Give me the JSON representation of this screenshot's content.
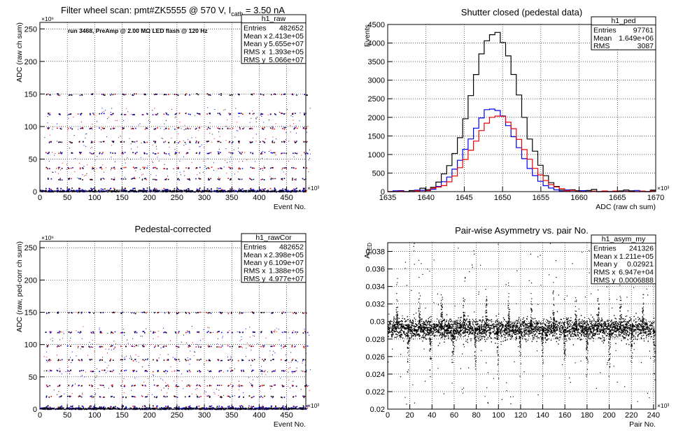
{
  "chart_data": [
    {
      "type": "scatter",
      "title": "Filter wheel scan: pmt#ZK5555 @   570 V, I",
      "title_sub": "cath",
      "title_tail": " = 3.50 nA",
      "subtitle": "run 3468, PreAmp @ 2.00 MΩ LED flash @  120 Hz",
      "xlabel": "Event No.",
      "ylabel": "ADC (raw ch sum)",
      "x_exponent": "×10³",
      "y_exponent": "×10⁶",
      "xlim": [
        0,
        485
      ],
      "ylim": [
        0,
        260
      ],
      "xticks": [
        0,
        50,
        100,
        150,
        200,
        250,
        300,
        350,
        400,
        450
      ],
      "yticks": [
        0,
        50,
        100,
        150,
        200,
        250
      ],
      "grid": true,
      "levels": [
        1.6,
        5,
        20,
        37,
        60,
        77,
        98,
        120,
        150
      ],
      "colors": {
        "red": "#ee0000",
        "blue": "#0000ee",
        "black": "#000000"
      },
      "stats": {
        "name": "h1_raw",
        "rows": [
          [
            "Entries",
            "482652"
          ],
          [
            "Mean x",
            "2.413e+05"
          ],
          [
            "Mean y",
            "5.655e+07"
          ],
          [
            "RMS x",
            "1.393e+05"
          ],
          [
            "RMS y",
            "5.066e+07"
          ]
        ]
      }
    },
    {
      "type": "line",
      "title": "Shutter closed (pedestal data)",
      "xlabel": "ADC (raw ch sum)",
      "ylabel": "Events",
      "x_exponent": "×10³",
      "xlim": [
        1635,
        1670
      ],
      "ylim": [
        0,
        4500
      ],
      "xticks": [
        1635,
        1640,
        1645,
        1650,
        1655,
        1660,
        1665,
        1670
      ],
      "yticks": [
        0,
        500,
        1000,
        1500,
        2000,
        2500,
        3000,
        3500,
        4000,
        4500
      ],
      "grid": true,
      "series": [
        {
          "color": "#000000",
          "mean": 1649,
          "sigma": 3.1,
          "amp": 4300
        },
        {
          "color": "#0000ee",
          "mean": 1648.7,
          "sigma": 3.0,
          "amp": 2250
        },
        {
          "color": "#ee0000",
          "mean": 1649.4,
          "sigma": 3.2,
          "amp": 2050
        }
      ],
      "stats": {
        "name": "h1_ped",
        "rows": [
          [
            "Entries",
            "97761"
          ],
          [
            "Mean",
            "1.649e+06"
          ],
          [
            "RMS",
            "3087"
          ]
        ]
      }
    },
    {
      "type": "scatter",
      "title": "Pedestal-corrected",
      "xlabel": "Event No.",
      "ylabel": "ADC (raw, ped-corr ch sum)",
      "x_exponent": "×10³",
      "y_exponent": "×10⁶",
      "xlim": [
        0,
        485
      ],
      "ylim": [
        0,
        260
      ],
      "xticks": [
        0,
        50,
        100,
        150,
        200,
        250,
        300,
        350,
        400,
        450
      ],
      "yticks": [
        0,
        50,
        100,
        150,
        200,
        250
      ],
      "grid": true,
      "levels": [
        1.6,
        5,
        20,
        37,
        60,
        77,
        98,
        120,
        150
      ],
      "stats": {
        "name": "h1_rawCor",
        "rows": [
          [
            "Entries",
            "482652"
          ],
          [
            "Mean x",
            "2.398e+05"
          ],
          [
            "Mean y",
            "6.109e+07"
          ],
          [
            "RMS x",
            "1.388e+05"
          ],
          [
            "RMS y",
            "4.977e+07"
          ]
        ]
      }
    },
    {
      "type": "scatter",
      "title": "Pair-wise Asymmetry vs. pair No.",
      "xlabel": "Pair No.",
      "ylabel": "A",
      "ylabel_sub": "LED",
      "x_exponent": "×10³",
      "xlim": [
        0,
        242
      ],
      "ylim": [
        0.02,
        0.039
      ],
      "xticks": [
        0,
        20,
        40,
        60,
        80,
        100,
        120,
        140,
        160,
        180,
        200,
        220,
        240
      ],
      "yticks": [
        0.02,
        0.022,
        0.024,
        0.026,
        0.028,
        0.03,
        0.032,
        0.034,
        0.036,
        0.038
      ],
      "grid": true,
      "band_center": 0.0292,
      "stats": {
        "name": "h1_asym_my",
        "rows": [
          [
            "Entries",
            "241326"
          ],
          [
            "Mean x",
            "1.211e+05"
          ],
          [
            "Mean y",
            "0.02921"
          ],
          [
            "RMS x",
            "6.947e+04"
          ],
          [
            "RMS y",
            "0.0006888"
          ]
        ]
      }
    }
  ]
}
